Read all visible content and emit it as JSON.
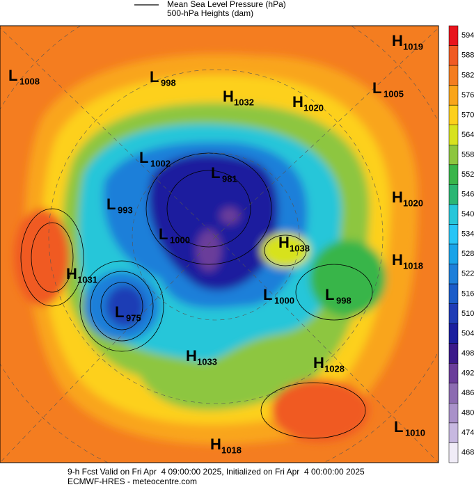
{
  "header": {
    "pressure_label": "Mean Sea Level Pressure (hPa)",
    "heights_label": "500-hPa Heights (dam)"
  },
  "colorbar": {
    "ticks": [
      594,
      588,
      582,
      576,
      570,
      564,
      558,
      552,
      546,
      540,
      534,
      528,
      522,
      516,
      510,
      504,
      498,
      492,
      486,
      480,
      474,
      468
    ],
    "colors": [
      "#e8141c",
      "#f05a23",
      "#f47d20",
      "#f9a51a",
      "#fdd01c",
      "#d7e21f",
      "#8dc63f",
      "#39b54a",
      "#2bb673",
      "#27c6d9",
      "#29c5f6",
      "#1aa3e8",
      "#1e7fd9",
      "#1b5cc8",
      "#1f3cb5",
      "#1b1f9e",
      "#3b1a8a",
      "#6a3d9a",
      "#8c6bb1",
      "#a991c9",
      "#c7b8e0",
      "#f0ecf7"
    ]
  },
  "centers": [
    {
      "kind": "H",
      "value": 1019
    },
    {
      "kind": "L",
      "value": 1008
    },
    {
      "kind": "L",
      "value": 998
    },
    {
      "kind": "H",
      "value": 1032
    },
    {
      "kind": "H",
      "value": 1020
    },
    {
      "kind": "L",
      "value": 1005
    },
    {
      "kind": "L",
      "value": 1002
    },
    {
      "kind": "L",
      "value": 981
    },
    {
      "kind": "L",
      "value": 993
    },
    {
      "kind": "H",
      "value": 1020
    },
    {
      "kind": "L",
      "value": 1000
    },
    {
      "kind": "H",
      "value": 1038
    },
    {
      "kind": "H",
      "value": 1018
    },
    {
      "kind": "H",
      "value": 1031
    },
    {
      "kind": "L",
      "value": 1000
    },
    {
      "kind": "L",
      "value": 998
    },
    {
      "kind": "L",
      "value": 975
    },
    {
      "kind": "H",
      "value": 1033
    },
    {
      "kind": "H",
      "value": 1028
    },
    {
      "kind": "L",
      "value": 1010
    },
    {
      "kind": "H",
      "value": 1018
    }
  ],
  "footer": {
    "line1": "9-h Fcst Valid on Fri Apr  4 09:00:00 2025, Initialized on Fri Apr  4 00:00:00 2025",
    "line2": "ECMWF-HRES - meteocentre.com"
  }
}
